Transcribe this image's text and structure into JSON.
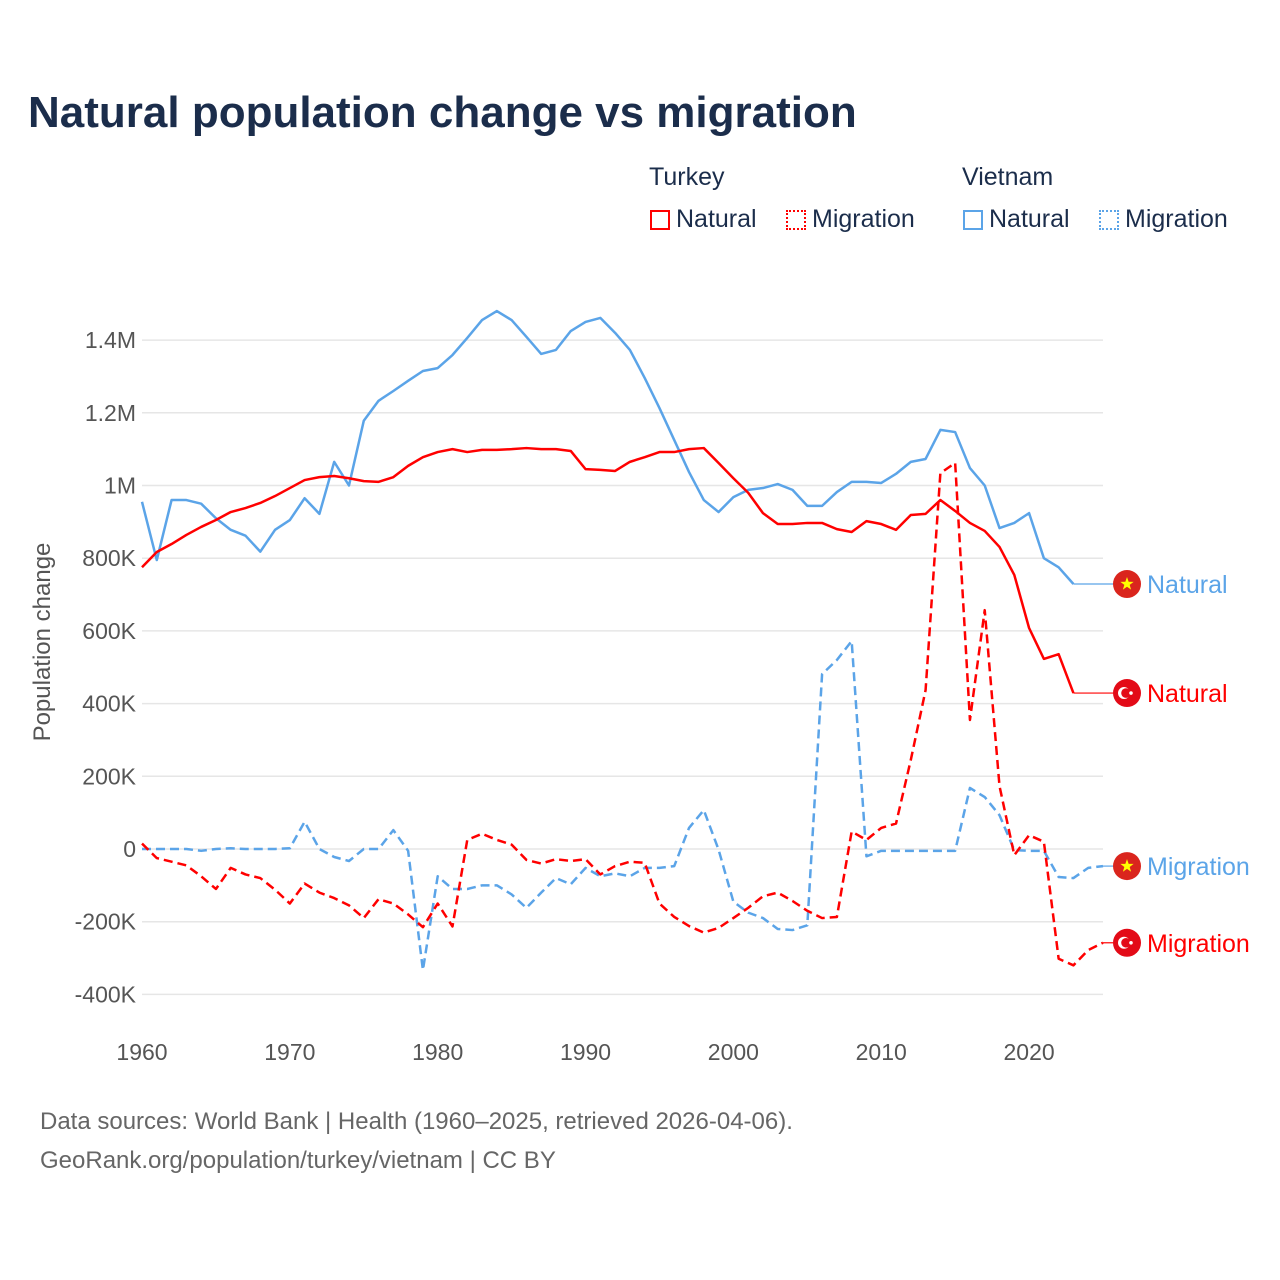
{
  "title": "Natural population change vs migration",
  "legend": {
    "groups": [
      {
        "label": "Turkey",
        "items": [
          {
            "label": "Natural",
            "color": "#ff0000",
            "style": "solid"
          },
          {
            "label": "Migration",
            "color": "#ff0000",
            "style": "dotted"
          }
        ]
      },
      {
        "label": "Vietnam",
        "items": [
          {
            "label": "Natural",
            "color": "#5ba4e8",
            "style": "solid"
          },
          {
            "label": "Migration",
            "color": "#5ba4e8",
            "style": "dotted"
          }
        ]
      }
    ]
  },
  "footer": {
    "line1": "Data sources: World Bank | Health (1960–2025, retrieved 2026-04-06).",
    "line2": "GeoRank.org/population/turkey/vietnam | CC BY"
  },
  "chart_data": {
    "type": "line",
    "ylabel": "Population change",
    "xlabel": "",
    "xlim": [
      1960,
      2025
    ],
    "ylim": [
      -400000,
      1500000
    ],
    "xticks": [
      1960,
      1970,
      1980,
      1990,
      2000,
      2010,
      2020
    ],
    "xtick_labels": [
      "1960",
      "1970",
      "1980",
      "1990",
      "2000",
      "2010",
      "2020"
    ],
    "yticks": [
      -400000,
      -200000,
      0,
      200000,
      400000,
      600000,
      800000,
      1000000,
      1200000,
      1400000
    ],
    "ytick_labels": [
      "-400K",
      "-200K",
      "0",
      "200K",
      "400K",
      "600K",
      "800K",
      "1M",
      "1.2M",
      "1.4M"
    ],
    "grid": true,
    "x_start": 1960,
    "series": [
      {
        "name": "Vietnam Natural",
        "end_label": "Natural",
        "color": "#5ba4e8",
        "dash": false,
        "flag": "vietnam",
        "values": [
          955,
          795,
          960,
          960,
          950,
          910,
          878,
          862,
          818,
          878,
          905,
          965,
          922,
          1065,
          1000,
          1178,
          1233,
          1260,
          1288,
          1315,
          1323,
          1359,
          1406,
          1455,
          1480,
          1455,
          1409,
          1362,
          1373,
          1425,
          1450,
          1461,
          1420,
          1373,
          1296,
          1213,
          1125,
          1037,
          960,
          927,
          968,
          988,
          993,
          1004,
          988,
          944,
          944,
          982,
          1010,
          1010,
          1007,
          1032,
          1065,
          1073,
          1153,
          1147,
          1048,
          1000,
          883,
          897,
          924,
          800,
          775,
          729
        ]
      },
      {
        "name": "Turkey Natural",
        "end_label": "Natural",
        "color": "#ff0000",
        "dash": false,
        "flag": "turkey",
        "values": [
          775,
          817,
          839,
          864,
          886,
          905,
          927,
          938,
          952,
          971,
          993,
          1015,
          1023,
          1026,
          1020,
          1012,
          1010,
          1023,
          1054,
          1078,
          1092,
          1100,
          1092,
          1098,
          1098,
          1100,
          1103,
          1100,
          1100,
          1095,
          1045,
          1043,
          1040,
          1065,
          1078,
          1092,
          1092,
          1100,
          1103,
          1062,
          1020,
          980,
          924,
          894,
          894,
          897,
          897,
          880,
          872,
          902,
          894,
          878,
          919,
          922,
          960,
          930,
          897,
          875,
          831,
          754,
          608,
          523,
          536,
          429
        ]
      },
      {
        "name": "Vietnam Migration",
        "end_label": "Migration",
        "color": "#5ba4e8",
        "dash": true,
        "flag": "vietnam",
        "values": [
          0,
          0,
          0,
          0,
          -5,
          0,
          2,
          0,
          0,
          0,
          2,
          75,
          0,
          -22,
          -33,
          0,
          0,
          52,
          -5,
          -333,
          -75,
          -110,
          -110,
          -100,
          -100,
          -125,
          -162,
          -120,
          -80,
          -97,
          -52,
          -75,
          -67,
          -75,
          -52,
          -52,
          -47,
          58,
          107,
          -2,
          -145,
          -175,
          -190,
          -220,
          -223,
          -210,
          481,
          520,
          572,
          -20,
          -5,
          -5,
          -5,
          -5,
          -5,
          -5,
          168,
          143,
          93,
          -3,
          -5,
          -5,
          -77,
          -80,
          -52,
          -47
        ]
      },
      {
        "name": "Turkey Migration",
        "end_label": "Migration",
        "color": "#ff0000",
        "dash": true,
        "flag": "turkey",
        "values": [
          15,
          -25,
          -35,
          -45,
          -75,
          -110,
          -52,
          -70,
          -80,
          -112,
          -150,
          -95,
          -120,
          -135,
          -155,
          -190,
          -138,
          -150,
          -180,
          -215,
          -150,
          -213,
          25,
          42,
          25,
          12,
          -30,
          -40,
          -28,
          -33,
          -28,
          -70,
          -47,
          -35,
          -38,
          -150,
          -187,
          -212,
          -230,
          -217,
          -190,
          -162,
          -130,
          -120,
          -143,
          -170,
          -190,
          -187,
          48,
          25,
          58,
          70,
          245,
          437,
          1034,
          1062,
          355,
          657,
          173,
          -17,
          38,
          20,
          -302,
          -320,
          -278,
          -258
        ]
      }
    ],
    "values_unit": "thousands"
  }
}
